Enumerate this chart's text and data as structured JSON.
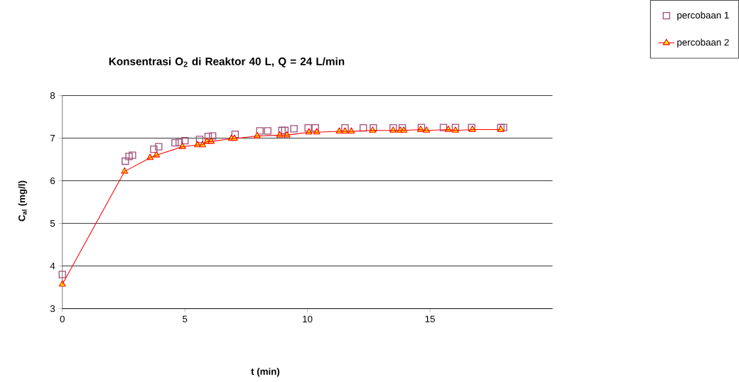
{
  "chart_data": {
    "type": "scatter",
    "title": "Konsentrasi O$_{2}$ di Reaktor 40 L, Q = 24 L/min",
    "xlabel": "t (min)",
    "ylabel": "C$_{al}$ (mg/l)",
    "xlim": [
      0,
      20
    ],
    "xticks": [
      0,
      5,
      10,
      15
    ],
    "ylim": [
      3,
      8
    ],
    "yticks": [
      3,
      4,
      5,
      6,
      7,
      8
    ],
    "grid": "y",
    "legend": "right",
    "series": [
      {
        "name": "percobaan 1",
        "marker": "square",
        "color": "#a0507a",
        "x": [
          0,
          2.57,
          2.72,
          2.86,
          3.73,
          3.93,
          4.6,
          4.77,
          5.0,
          5.6,
          5.95,
          6.13,
          7.05,
          8.06,
          8.38,
          8.96,
          9.08,
          9.45,
          10.03,
          10.32,
          11.53,
          12.28,
          12.69,
          13.5,
          13.87,
          14.65,
          15.55,
          16.04,
          16.7,
          17.89,
          18.0
        ],
        "values": [
          3.8,
          6.46,
          6.57,
          6.6,
          6.74,
          6.8,
          6.89,
          6.9,
          6.94,
          6.97,
          7.04,
          7.05,
          7.09,
          7.17,
          7.17,
          7.18,
          7.18,
          7.22,
          7.24,
          7.24,
          7.24,
          7.24,
          7.24,
          7.24,
          7.24,
          7.25,
          7.25,
          7.25,
          7.25,
          7.25,
          7.25
        ]
      },
      {
        "name": "percobaan 2",
        "type": "line",
        "marker": "triangle",
        "color": "#ff0000",
        "x": [
          0,
          2.54,
          3.58,
          3.84,
          4.9,
          5.52,
          5.72,
          5.9,
          6.07,
          6.9,
          7.02,
          7.95,
          8.87,
          9.16,
          10.06,
          10.38,
          11.3,
          11.53,
          11.79,
          12.66,
          13.5,
          13.79,
          13.93,
          14.62,
          14.86,
          15.75,
          16.04,
          16.73,
          17.89
        ],
        "values": [
          3.57,
          6.22,
          6.54,
          6.6,
          6.8,
          6.84,
          6.84,
          6.92,
          6.92,
          6.99,
          6.99,
          7.05,
          7.07,
          7.07,
          7.14,
          7.14,
          7.16,
          7.16,
          7.16,
          7.18,
          7.18,
          7.18,
          7.18,
          7.2,
          7.18,
          7.2,
          7.18,
          7.2,
          7.2
        ]
      }
    ]
  }
}
